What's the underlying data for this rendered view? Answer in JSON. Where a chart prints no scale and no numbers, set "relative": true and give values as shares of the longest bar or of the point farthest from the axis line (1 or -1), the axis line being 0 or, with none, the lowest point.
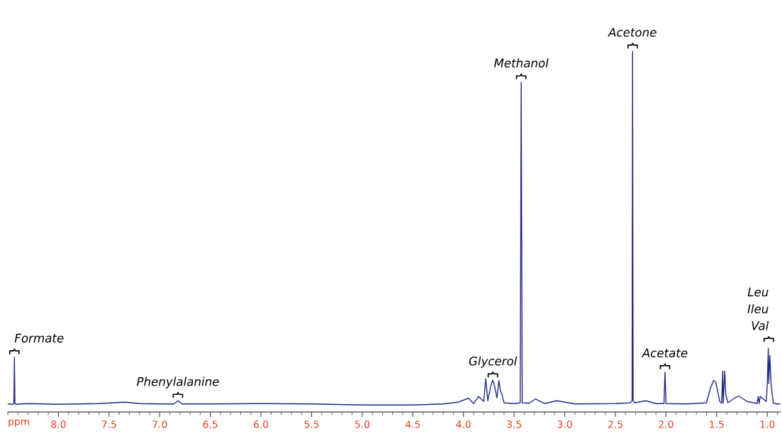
{
  "chart_data": {
    "type": "line",
    "relative": true,
    "xlabel": "ppm",
    "xlim": [
      8.5,
      0.87
    ],
    "xticks": [
      {
        "value": 8.0,
        "label": "8.0"
      },
      {
        "value": 7.5,
        "label": "7.5"
      },
      {
        "value": 7.0,
        "label": "7.0"
      },
      {
        "value": 6.5,
        "label": "6.5"
      },
      {
        "value": 6.0,
        "label": "6.0"
      },
      {
        "value": 5.5,
        "label": "5.5"
      },
      {
        "value": 5.0,
        "label": "5.0"
      },
      {
        "value": 4.5,
        "label": "4.5"
      },
      {
        "value": 4.0,
        "label": "4.0"
      },
      {
        "value": 3.5,
        "label": "3.5"
      },
      {
        "value": 3.0,
        "label": "3.0"
      },
      {
        "value": 2.5,
        "label": "2.5"
      },
      {
        "value": 2.0,
        "label": "2.0"
      },
      {
        "value": 1.5,
        "label": "1.5"
      },
      {
        "value": 1.0,
        "label": "1.0"
      }
    ],
    "grid": false,
    "marker": "none",
    "line_style": "solid",
    "series": [
      {
        "color": "#1f2a80",
        "x": [
          8.5,
          8.45,
          8.44,
          8.435,
          8.43,
          8.42,
          8.3,
          8.0,
          7.6,
          7.35,
          7.2,
          7.0,
          6.86,
          6.82,
          6.78,
          6.5,
          6.0,
          5.5,
          5.0,
          4.5,
          4.2,
          4.05,
          3.95,
          3.9,
          3.85,
          3.8,
          3.78,
          3.76,
          3.73,
          3.71,
          3.69,
          3.67,
          3.65,
          3.635,
          3.62,
          3.6,
          3.5,
          3.44,
          3.43,
          3.42,
          3.35,
          3.29,
          3.2,
          3.08,
          2.9,
          2.5,
          2.35,
          2.335,
          2.33,
          2.325,
          2.31,
          2.2,
          2.1,
          2.02,
          2.01,
          2.0,
          1.8,
          1.6,
          1.56,
          1.53,
          1.51,
          1.49,
          1.47,
          1.45,
          1.44,
          1.435,
          1.42,
          1.41,
          1.39,
          1.32,
          1.28,
          1.2,
          1.1,
          1.09,
          1.08,
          1.07,
          1.01,
          1.0,
          0.99,
          0.985,
          0.975,
          0.96,
          0.94,
          0.9,
          0.87
        ],
        "values": [
          0.003,
          0.002,
          0.004,
          0.135,
          0.004,
          0.002,
          0.004,
          0.002,
          0.004,
          0.008,
          0.004,
          0.003,
          0.003,
          0.012,
          0.003,
          0.003,
          0.004,
          0.003,
          0.0,
          0.0,
          0.003,
          0.008,
          0.019,
          0.004,
          0.024,
          0.01,
          0.074,
          0.012,
          0.054,
          0.07,
          0.05,
          0.02,
          0.069,
          0.04,
          0.03,
          0.006,
          0.004,
          0.006,
          0.913,
          0.006,
          0.005,
          0.017,
          0.004,
          0.012,
          0.003,
          0.004,
          0.006,
          0.012,
          1.0,
          0.012,
          0.006,
          0.012,
          0.004,
          0.004,
          0.093,
          0.004,
          0.003,
          0.006,
          0.048,
          0.069,
          0.065,
          0.04,
          0.01,
          0.005,
          0.096,
          0.005,
          0.096,
          0.03,
          0.006,
          0.02,
          0.025,
          0.01,
          0.004,
          0.024,
          0.004,
          0.024,
          0.01,
          0.06,
          0.16,
          0.06,
          0.14,
          0.05,
          0.005,
          0.003,
          0.003
        ]
      }
    ],
    "annotations": [
      {
        "text": "Formate",
        "x": 8.435,
        "y": 0.135
      },
      {
        "text": "Phenylalanine",
        "x": 6.82,
        "y": 0.012
      },
      {
        "text": "Glycerol",
        "x": 3.71,
        "y": 0.07
      },
      {
        "text": "Methanol",
        "x": 3.43,
        "y": 0.913
      },
      {
        "text": "Acetone",
        "x": 2.33,
        "y": 1.0
      },
      {
        "text": "Acetate",
        "x": 2.01,
        "y": 0.093
      },
      {
        "text": "Leu\nIleu\nVal",
        "x": 0.985,
        "y": 0.17
      }
    ]
  }
}
